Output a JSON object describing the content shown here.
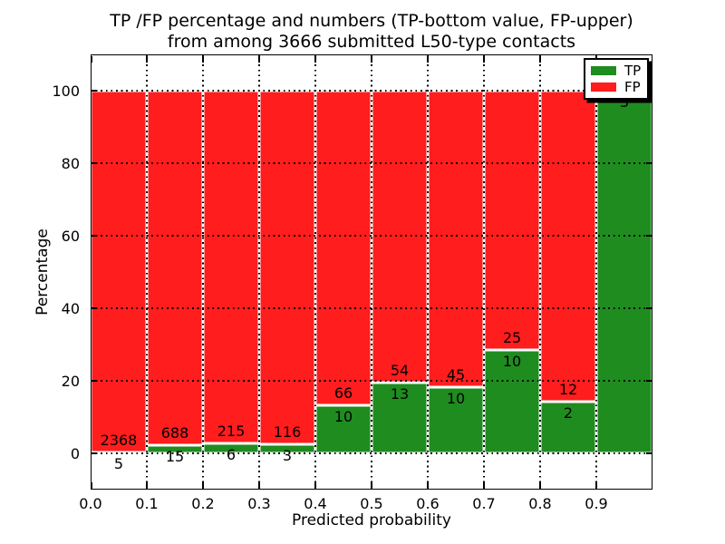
{
  "figure": {
    "title_line1": "TP /FP percentage and numbers (TP-bottom value, FP-upper)",
    "title_line2": "from among 3666 submitted L50-type contacts",
    "xlabel": "Predicted probability",
    "ylabel": "Percentage"
  },
  "legend": {
    "items": [
      {
        "label": "TP",
        "color": "#1f8c1f"
      },
      {
        "label": "FP",
        "color": "#ff1d1d"
      }
    ]
  },
  "chart_data": {
    "type": "bar",
    "stacked": true,
    "normalized": "percent_of_bin_total",
    "title": "TP /FP percentage and numbers (TP-bottom value, FP-upper) from among 3666 submitted L50-type contacts",
    "total_contacts": 3666,
    "xlabel": "Predicted probability",
    "ylabel": "Percentage",
    "xlim": [
      0.0,
      1.0
    ],
    "ylim": [
      -10,
      110
    ],
    "xticks": [
      "0.0",
      "0.1",
      "0.2",
      "0.3",
      "0.4",
      "0.5",
      "0.6",
      "0.7",
      "0.8",
      "0.9"
    ],
    "yticks": [
      0,
      20,
      40,
      60,
      80,
      100
    ],
    "grid": "dotted",
    "legend_position": "upper right",
    "series_info": [
      {
        "name": "TP",
        "color": "#1f8c1f",
        "position": "bottom"
      },
      {
        "name": "FP",
        "color": "#ff1d1d",
        "position": "top"
      }
    ],
    "bins": [
      {
        "x_start": 0.0,
        "x_end": 0.1,
        "tp": 5,
        "fp": 2368
      },
      {
        "x_start": 0.1,
        "x_end": 0.2,
        "tp": 15,
        "fp": 688
      },
      {
        "x_start": 0.2,
        "x_end": 0.3,
        "tp": 6,
        "fp": 215
      },
      {
        "x_start": 0.3,
        "x_end": 0.4,
        "tp": 3,
        "fp": 116
      },
      {
        "x_start": 0.4,
        "x_end": 0.5,
        "tp": 10,
        "fp": 66
      },
      {
        "x_start": 0.5,
        "x_end": 0.6,
        "tp": 13,
        "fp": 54
      },
      {
        "x_start": 0.6,
        "x_end": 0.7,
        "tp": 10,
        "fp": 45
      },
      {
        "x_start": 0.7,
        "x_end": 0.8,
        "tp": 10,
        "fp": 25
      },
      {
        "x_start": 0.8,
        "x_end": 0.9,
        "tp": 2,
        "fp": 12
      },
      {
        "x_start": 0.9,
        "x_end": 1.0,
        "tp": 3,
        "fp": 0
      }
    ]
  }
}
